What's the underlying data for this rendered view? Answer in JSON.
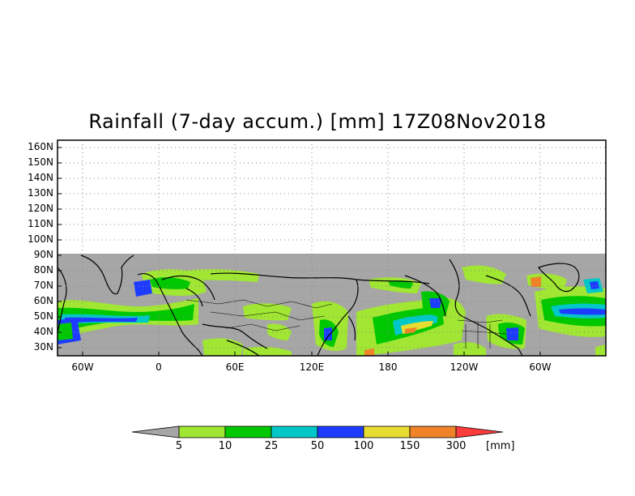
{
  "title": "Rainfall (7-day accum.) [mm] 17Z08Nov2018",
  "lat_labels": [
    "160N",
    "150N",
    "140N",
    "130N",
    "120N",
    "110N",
    "100N",
    "90N",
    "80N",
    "70N",
    "60N",
    "50N",
    "40N",
    "30N"
  ],
  "lon_labels": [
    "60W",
    "0",
    "60E",
    "120E",
    "180",
    "120W",
    "60W"
  ],
  "colorbar": {
    "levels": [
      "5",
      "10",
      "25",
      "50",
      "100",
      "150",
      "300"
    ],
    "unit": "[mm]",
    "colors": {
      "below": "#a6a6a6",
      "b5_10": "#a0e632",
      "b10_25": "#00c800",
      "b25_50": "#00c8c8",
      "b50_100": "#1e3cff",
      "b100_150": "#e6dc32",
      "b150_300": "#f08228",
      "above": "#fa3c3c"
    }
  },
  "map": {
    "no_data_color": "#a6a6a6",
    "grid": "dotted"
  }
}
